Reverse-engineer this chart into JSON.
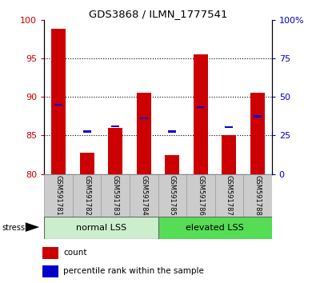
{
  "title": "GDS3868 / ILMN_1777541",
  "samples": [
    "GSM591781",
    "GSM591782",
    "GSM591783",
    "GSM591784",
    "GSM591785",
    "GSM591786",
    "GSM591787",
    "GSM591788"
  ],
  "red_values": [
    98.8,
    82.8,
    86.0,
    90.5,
    82.5,
    95.5,
    85.0,
    90.5
  ],
  "blue_values": [
    89.0,
    85.5,
    86.2,
    87.2,
    85.5,
    88.7,
    86.1,
    87.5
  ],
  "ymin": 80,
  "ymax": 100,
  "yticks_left": [
    80,
    85,
    90,
    95,
    100
  ],
  "yticks_right_vals": [
    0,
    25,
    50,
    75,
    100
  ],
  "yticks_right_labels": [
    "0",
    "25",
    "50",
    "75",
    "100%"
  ],
  "group1_label": "normal LSS",
  "group2_label": "elevated LSS",
  "stress_label": "stress",
  "legend_red": "count",
  "legend_blue": "percentile rank within the sample",
  "red_color": "#cc0000",
  "blue_color": "#0000cc",
  "bar_width": 0.5,
  "group1_bg": "#cceecc",
  "group2_bg": "#55dd55",
  "tick_label_bg": "#cccccc",
  "grid_lines": [
    85,
    90,
    95
  ]
}
